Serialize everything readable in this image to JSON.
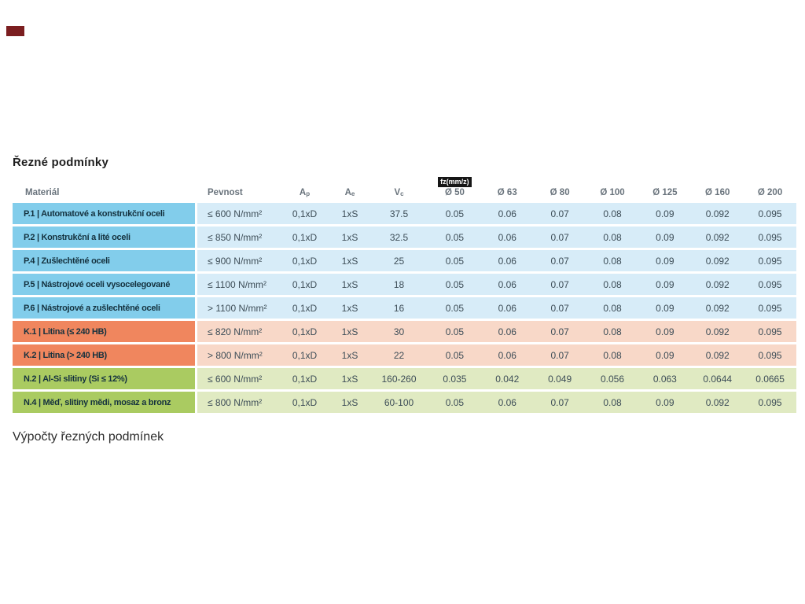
{
  "title": "Řezné podmínky",
  "section_footer": "Výpočty řezných podmínek",
  "table": {
    "headers": {
      "material": "Materiál",
      "strength": "Pevnost",
      "ap_base": "A",
      "ap_sub": "p",
      "ae_base": "A",
      "ae_sub": "e",
      "vc_base": "V",
      "vc_sub": "c",
      "fz_chip": "fz(mm/z)",
      "diameters": [
        "Ø 50",
        "Ø 63",
        "Ø 80",
        "Ø 100",
        "Ø 125",
        "Ø 160",
        "Ø 200"
      ]
    },
    "rows": [
      {
        "group": "blue",
        "material": "P.1 | Automatové a konstrukční oceli",
        "strength": "≤ 600 N/mm²",
        "ap": "0,1xD",
        "ae": "1xS",
        "vc": "37.5",
        "fz": [
          "0.05",
          "0.06",
          "0.07",
          "0.08",
          "0.09",
          "0.092",
          "0.095"
        ]
      },
      {
        "group": "blue",
        "material": "P.2 | Konstrukční a lité oceli",
        "strength": "≤ 850 N/mm²",
        "ap": "0,1xD",
        "ae": "1xS",
        "vc": "32.5",
        "fz": [
          "0.05",
          "0.06",
          "0.07",
          "0.08",
          "0.09",
          "0.092",
          "0.095"
        ]
      },
      {
        "group": "blue",
        "material": "P.4 | Zušlechtěné oceli",
        "strength": "≤ 900 N/mm²",
        "ap": "0,1xD",
        "ae": "1xS",
        "vc": "25",
        "fz": [
          "0.05",
          "0.06",
          "0.07",
          "0.08",
          "0.09",
          "0.092",
          "0.095"
        ]
      },
      {
        "group": "blue",
        "material": "P.5 | Nástrojové oceli vysocelegované",
        "strength": "≤ 1100 N/mm²",
        "ap": "0,1xD",
        "ae": "1xS",
        "vc": "18",
        "fz": [
          "0.05",
          "0.06",
          "0.07",
          "0.08",
          "0.09",
          "0.092",
          "0.095"
        ]
      },
      {
        "group": "blue",
        "material": "P.6 | Nástrojové a zušlechtěné oceli",
        "strength": "> 1100 N/mm²",
        "ap": "0,1xD",
        "ae": "1xS",
        "vc": "16",
        "fz": [
          "0.05",
          "0.06",
          "0.07",
          "0.08",
          "0.09",
          "0.092",
          "0.095"
        ]
      },
      {
        "group": "orange",
        "material": "K.1 | Litina (≤ 240 HB)",
        "strength": "≤ 820 N/mm²",
        "ap": "0,1xD",
        "ae": "1xS",
        "vc": "30",
        "fz": [
          "0.05",
          "0.06",
          "0.07",
          "0.08",
          "0.09",
          "0.092",
          "0.095"
        ]
      },
      {
        "group": "orange",
        "material": "K.2 | Litina (> 240 HB)",
        "strength": "> 800 N/mm²",
        "ap": "0,1xD",
        "ae": "1xS",
        "vc": "22",
        "fz": [
          "0.05",
          "0.06",
          "0.07",
          "0.08",
          "0.09",
          "0.092",
          "0.095"
        ]
      },
      {
        "group": "green",
        "material": "N.2 | Al-Si slitiny (Si ≤ 12%)",
        "strength": "≤ 600 N/mm²",
        "ap": "0,1xD",
        "ae": "1xS",
        "vc": "160-260",
        "fz": [
          "0.035",
          "0.042",
          "0.049",
          "0.056",
          "0.063",
          "0.0644",
          "0.0665"
        ]
      },
      {
        "group": "green",
        "material": "N.4 | Měď, slitiny mědi, mosaz a bronz",
        "strength": "≤ 800 N/mm²",
        "ap": "0,1xD",
        "ae": "1xS",
        "vc": "60-100",
        "fz": [
          "0.05",
          "0.06",
          "0.07",
          "0.08",
          "0.09",
          "0.092",
          "0.095"
        ]
      }
    ]
  },
  "colors": {
    "blue_dark": "#82CDEB",
    "blue_light": "#D7ECF8",
    "orange_dark": "#F0865E",
    "orange_light": "#F8D8C8",
    "green_dark": "#AACB61",
    "green_light": "#E0EAC2",
    "chip_bg": "#161616",
    "chip_text": "#FFFFFF",
    "corner_mark": "#7B1E20"
  }
}
